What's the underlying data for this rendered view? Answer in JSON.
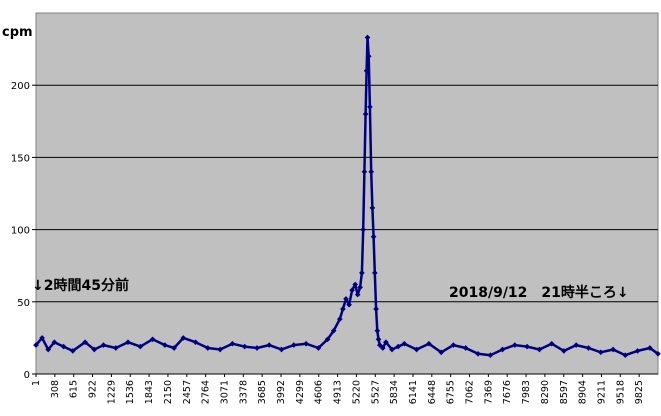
{
  "chart_data": {
    "type": "line",
    "title": "",
    "ylabel": "cpm",
    "xlabel": "",
    "ylim": [
      0,
      250
    ],
    "y_ticks": [
      0,
      50,
      100,
      150,
      200
    ],
    "x_range": [
      1,
      10132
    ],
    "x_tick_labels": [
      "1",
      "308",
      "615",
      "922",
      "1229",
      "1536",
      "1843",
      "2150",
      "2457",
      "2764",
      "3071",
      "3378",
      "3685",
      "3992",
      "4299",
      "4606",
      "4913",
      "5220",
      "5527",
      "5834",
      "6141",
      "6448",
      "6755",
      "7062",
      "7369",
      "7676",
      "7983",
      "8290",
      "8597",
      "8904",
      "9211",
      "9518",
      "9825"
    ],
    "grid": "horizontal",
    "colors": {
      "plot_bg": "#c0c0c0",
      "series": "#000080"
    },
    "series": [
      {
        "x": [
          1,
          100,
          200,
          300,
          450,
          600,
          800,
          950,
          1100,
          1300,
          1500,
          1700,
          1900,
          2100,
          2250,
          2400,
          2600,
          2800,
          3000,
          3200,
          3400,
          3600,
          3800,
          4000,
          4200,
          4400,
          4600,
          4750,
          4850,
          4950,
          5000,
          5050,
          5100,
          5150,
          5200,
          5240,
          5280,
          5310,
          5330,
          5350,
          5370,
          5385,
          5400,
          5420,
          5440,
          5460,
          5480,
          5500,
          5520,
          5540,
          5560,
          5580,
          5600,
          5650,
          5700,
          5800,
          5900,
          6000,
          6200,
          6400,
          6600,
          6800,
          7000,
          7200,
          7400,
          7600,
          7800,
          8000,
          8200,
          8400,
          8600,
          8800,
          9000,
          9200,
          9400,
          9600,
          9800,
          10000,
          10132
        ],
        "y": [
          20,
          25,
          17,
          22,
          19,
          16,
          22,
          17,
          20,
          18,
          22,
          19,
          24,
          20,
          18,
          25,
          22,
          18,
          17,
          21,
          19,
          18,
          20,
          17,
          20,
          21,
          18,
          24,
          30,
          38,
          45,
          52,
          48,
          58,
          62,
          55,
          60,
          70,
          100,
          140,
          180,
          210,
          233,
          220,
          185,
          140,
          115,
          95,
          70,
          45,
          30,
          24,
          20,
          18,
          22,
          17,
          19,
          21,
          17,
          21,
          15,
          20,
          18,
          14,
          13,
          17,
          20,
          19,
          17,
          21,
          16,
          20,
          18,
          15,
          17,
          13,
          16,
          18,
          14
        ]
      }
    ],
    "annotations": [
      {
        "text": "↓2時間45分前"
      },
      {
        "text": "2018/9/12　21時半ころ↓"
      }
    ]
  }
}
